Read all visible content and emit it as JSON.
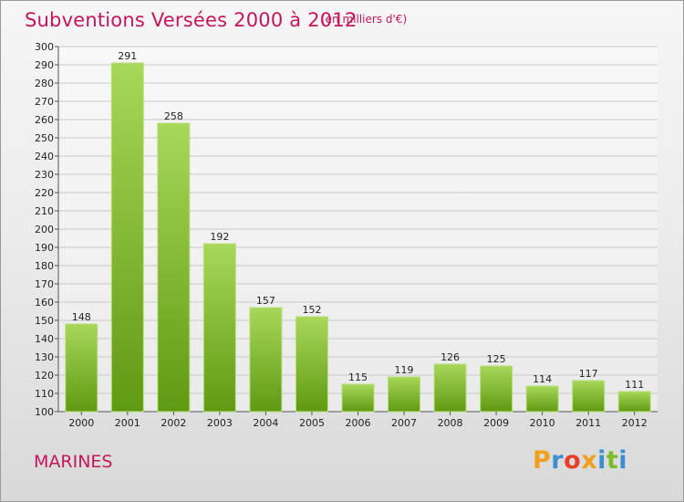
{
  "header": {
    "title": "Subventions Versées 2000 à 2012",
    "subtitle": "(en milliers d'€)"
  },
  "footer": {
    "city": "MARINES",
    "logo": "Proxiti"
  },
  "colors": {
    "accent": "#c4165a",
    "bar_light": "#a8d75a",
    "bar_dark": "#5f9a12",
    "logo_letters": [
      "#f0a01e",
      "#3b8fd1",
      "#e6402a",
      "#f0a01e",
      "#3b8fd1",
      "#7cbb2a",
      "#3b8fd1"
    ]
  },
  "chart_data": {
    "type": "bar",
    "categories": [
      "2000",
      "2001",
      "2002",
      "2003",
      "2004",
      "2005",
      "2006",
      "2007",
      "2008",
      "2009",
      "2010",
      "2011",
      "2012"
    ],
    "values": [
      148,
      291,
      258,
      192,
      157,
      152,
      115,
      119,
      126,
      125,
      114,
      117,
      111
    ],
    "ylim": [
      100,
      300
    ],
    "yticks": [
      100,
      110,
      120,
      130,
      140,
      150,
      160,
      170,
      180,
      190,
      200,
      210,
      220,
      230,
      240,
      250,
      260,
      270,
      280,
      290,
      300
    ],
    "grid": true
  }
}
